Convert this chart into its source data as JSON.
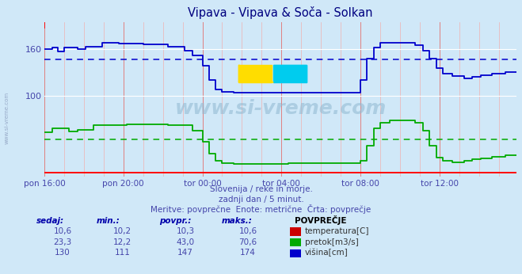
{
  "title": "Vipava - Vipava & Soča - Solkan",
  "title_color": "#000080",
  "bg_color": "#d0e8f8",
  "xlabel_color": "#4444aa",
  "text_color": "#4444aa",
  "subtitle1": "Slovenija / reke in morje.",
  "subtitle2": "zadnji dan / 5 minut.",
  "subtitle3": "Meritve: povprečne  Enote: metrične  Črta: povprečje",
  "yticks": [
    100,
    160
  ],
  "ylim": [
    -5,
    195
  ],
  "xlim": [
    0,
    287
  ],
  "xtick_labels": [
    "pon 16:00",
    "pon 20:00",
    "tor 00:00",
    "tor 04:00",
    "tor 08:00",
    "tor 12:00"
  ],
  "xtick_pos": [
    0,
    48,
    96,
    144,
    192,
    240
  ],
  "avg_blue": 147,
  "avg_green": 43,
  "blue_color": "#0000cc",
  "green_color": "#00aa00",
  "red_color": "#cc0000",
  "legend_header": "POVPREČJE",
  "legend_items": [
    {
      "label": "temperatura[C]",
      "color": "#cc0000",
      "sedaj": "10,6",
      "min": "10,2",
      "povpr": "10,3",
      "maks": "10,6"
    },
    {
      "label": "pretok[m3/s]",
      "color": "#00aa00",
      "sedaj": "23,3",
      "min": "12,2",
      "povpr": "43,0",
      "maks": "70,6"
    },
    {
      "label": "višina[cm]",
      "color": "#0000cc",
      "sedaj": "130",
      "min": "111",
      "povpr": "147",
      "maks": "174"
    }
  ],
  "col_headers": [
    "sedaj:",
    "min.:",
    "povpr.:",
    "maks.:"
  ],
  "watermark": "www.si-vreme.com"
}
